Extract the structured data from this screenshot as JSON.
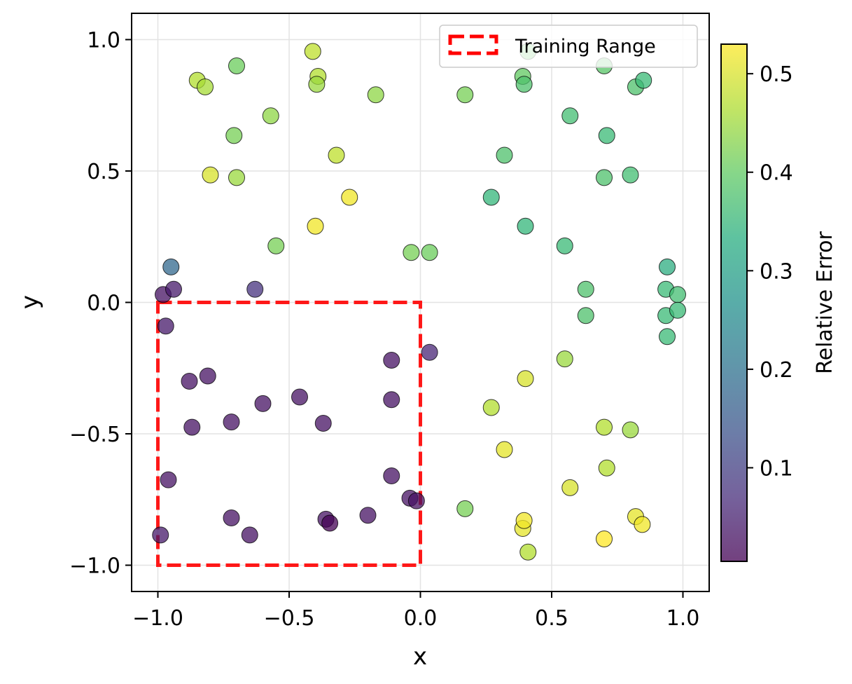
{
  "chart_data": {
    "type": "scatter",
    "title": "",
    "xlabel": "x",
    "ylabel": "y",
    "xlim": [
      -1.1,
      1.1
    ],
    "ylim": [
      -1.1,
      1.1
    ],
    "xticks": [
      -1.0,
      -0.5,
      0.0,
      0.5,
      1.0
    ],
    "yticks": [
      -1.0,
      -0.5,
      0.0,
      0.5,
      1.0
    ],
    "xtick_labels": [
      "−1.0",
      "−0.5",
      "0.0",
      "0.5",
      "1.0"
    ],
    "ytick_labels": [
      "−1.0",
      "−0.5",
      "0.0",
      "0.5",
      "1.0"
    ],
    "grid": true,
    "legend": {
      "placement": "top-right",
      "entries": [
        "Training Range"
      ]
    },
    "training_range": {
      "x": [
        -1.0,
        0.0
      ],
      "y": [
        -1.0,
        0.0
      ],
      "color": "#ff0000",
      "style": "dashed"
    },
    "colorbar": {
      "label": "Relative Error",
      "colormap": "viridis",
      "range": [
        0.005,
        0.53
      ],
      "ticks": [
        0.1,
        0.2,
        0.3,
        0.4,
        0.5
      ],
      "tick_labels": [
        "0.1",
        "0.2",
        "0.3",
        "0.4",
        "0.5"
      ]
    },
    "points": [
      {
        "x": -0.98,
        "y": 0.03,
        "c": 0.03
      },
      {
        "x": -0.94,
        "y": 0.05,
        "c": 0.04
      },
      {
        "x": -0.95,
        "y": 0.135,
        "c": 0.18
      },
      {
        "x": -0.63,
        "y": 0.05,
        "c": 0.08
      },
      {
        "x": -0.97,
        "y": -0.09,
        "c": 0.04
      },
      {
        "x": -0.88,
        "y": -0.3,
        "c": 0.03
      },
      {
        "x": -0.81,
        "y": -0.28,
        "c": 0.03
      },
      {
        "x": -0.87,
        "y": -0.475,
        "c": 0.03
      },
      {
        "x": -0.72,
        "y": -0.455,
        "c": 0.03
      },
      {
        "x": -0.6,
        "y": -0.385,
        "c": 0.03
      },
      {
        "x": -0.46,
        "y": -0.36,
        "c": 0.03
      },
      {
        "x": -0.37,
        "y": -0.46,
        "c": 0.03
      },
      {
        "x": -0.11,
        "y": -0.22,
        "c": 0.03
      },
      {
        "x": -0.11,
        "y": -0.37,
        "c": 0.03
      },
      {
        "x": 0.035,
        "y": -0.19,
        "c": 0.06
      },
      {
        "x": -0.11,
        "y": -0.66,
        "c": 0.03
      },
      {
        "x": -0.04,
        "y": -0.745,
        "c": 0.03
      },
      {
        "x": -0.015,
        "y": -0.755,
        "c": 0.03
      },
      {
        "x": -0.96,
        "y": -0.675,
        "c": 0.03
      },
      {
        "x": -0.99,
        "y": -0.885,
        "c": 0.04
      },
      {
        "x": -0.72,
        "y": -0.82,
        "c": 0.03
      },
      {
        "x": -0.65,
        "y": -0.885,
        "c": 0.03
      },
      {
        "x": -0.36,
        "y": -0.825,
        "c": 0.03
      },
      {
        "x": -0.345,
        "y": -0.84,
        "c": 0.005
      },
      {
        "x": -0.2,
        "y": -0.81,
        "c": 0.03
      },
      {
        "x": -0.85,
        "y": 0.845,
        "c": 0.47
      },
      {
        "x": -0.82,
        "y": 0.82,
        "c": 0.46
      },
      {
        "x": -0.7,
        "y": 0.9,
        "c": 0.41
      },
      {
        "x": -0.41,
        "y": 0.955,
        "c": 0.48
      },
      {
        "x": -0.39,
        "y": 0.86,
        "c": 0.47
      },
      {
        "x": -0.395,
        "y": 0.83,
        "c": 0.45
      },
      {
        "x": -0.17,
        "y": 0.79,
        "c": 0.44
      },
      {
        "x": -0.57,
        "y": 0.71,
        "c": 0.44
      },
      {
        "x": -0.71,
        "y": 0.635,
        "c": 0.42
      },
      {
        "x": -0.8,
        "y": 0.485,
        "c": 0.5
      },
      {
        "x": -0.7,
        "y": 0.475,
        "c": 0.45
      },
      {
        "x": -0.32,
        "y": 0.56,
        "c": 0.48
      },
      {
        "x": -0.27,
        "y": 0.4,
        "c": 0.52
      },
      {
        "x": -0.4,
        "y": 0.29,
        "c": 0.52
      },
      {
        "x": -0.55,
        "y": 0.215,
        "c": 0.42
      },
      {
        "x": -0.035,
        "y": 0.19,
        "c": 0.42
      },
      {
        "x": 0.035,
        "y": 0.19,
        "c": 0.41
      },
      {
        "x": 0.17,
        "y": 0.79,
        "c": 0.42
      },
      {
        "x": 0.41,
        "y": 0.955,
        "c": 0.4
      },
      {
        "x": 0.39,
        "y": 0.86,
        "c": 0.4
      },
      {
        "x": 0.395,
        "y": 0.83,
        "c": 0.38
      },
      {
        "x": 0.32,
        "y": 0.56,
        "c": 0.38
      },
      {
        "x": 0.27,
        "y": 0.4,
        "c": 0.35
      },
      {
        "x": 0.4,
        "y": 0.29,
        "c": 0.35
      },
      {
        "x": 0.55,
        "y": 0.215,
        "c": 0.36
      },
      {
        "x": 0.57,
        "y": 0.71,
        "c": 0.37
      },
      {
        "x": 0.7,
        "y": 0.9,
        "c": 0.39
      },
      {
        "x": 0.71,
        "y": 0.635,
        "c": 0.36
      },
      {
        "x": 0.7,
        "y": 0.475,
        "c": 0.38
      },
      {
        "x": 0.8,
        "y": 0.485,
        "c": 0.37
      },
      {
        "x": 0.82,
        "y": 0.82,
        "c": 0.38
      },
      {
        "x": 0.85,
        "y": 0.845,
        "c": 0.36
      },
      {
        "x": 0.63,
        "y": 0.05,
        "c": 0.38
      },
      {
        "x": 0.63,
        "y": -0.05,
        "c": 0.38
      },
      {
        "x": 0.94,
        "y": 0.135,
        "c": 0.33
      },
      {
        "x": 0.935,
        "y": 0.05,
        "c": 0.36
      },
      {
        "x": 0.98,
        "y": 0.03,
        "c": 0.37
      },
      {
        "x": 0.935,
        "y": -0.05,
        "c": 0.36
      },
      {
        "x": 0.98,
        "y": -0.03,
        "c": 0.36
      },
      {
        "x": 0.94,
        "y": -0.13,
        "c": 0.36
      },
      {
        "x": 0.55,
        "y": -0.215,
        "c": 0.45
      },
      {
        "x": 0.4,
        "y": -0.29,
        "c": 0.5
      },
      {
        "x": 0.27,
        "y": -0.4,
        "c": 0.47
      },
      {
        "x": 0.32,
        "y": -0.56,
        "c": 0.51
      },
      {
        "x": 0.17,
        "y": -0.785,
        "c": 0.42
      },
      {
        "x": 0.7,
        "y": -0.475,
        "c": 0.47
      },
      {
        "x": 0.8,
        "y": -0.485,
        "c": 0.45
      },
      {
        "x": 0.71,
        "y": -0.63,
        "c": 0.47
      },
      {
        "x": 0.57,
        "y": -0.705,
        "c": 0.5
      },
      {
        "x": 0.39,
        "y": -0.86,
        "c": 0.51
      },
      {
        "x": 0.395,
        "y": -0.83,
        "c": 0.52
      },
      {
        "x": 0.41,
        "y": -0.95,
        "c": 0.47
      },
      {
        "x": 0.7,
        "y": -0.9,
        "c": 0.53
      },
      {
        "x": 0.82,
        "y": -0.815,
        "c": 0.51
      },
      {
        "x": 0.845,
        "y": -0.845,
        "c": 0.52
      }
    ]
  }
}
